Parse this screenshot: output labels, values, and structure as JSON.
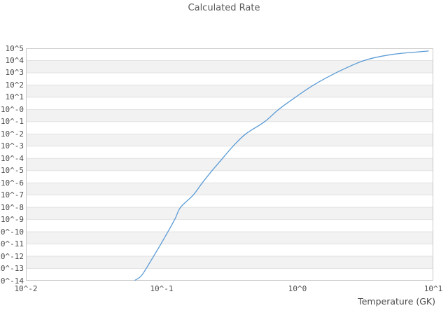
{
  "chart_data": {
    "type": "line",
    "title": "Calculated Rate",
    "xlabel": "Temperature (GK)",
    "ylabel": "",
    "x_scale": "log",
    "y_scale": "log",
    "xlim": [
      0.01,
      10
    ],
    "ylim": [
      1e-14,
      100000.0
    ],
    "grid": "horizontal-decade-bands-alternating",
    "legend": "none",
    "x_tick_labels": [
      "10^-2",
      "10^-1",
      "10^0",
      "10^1"
    ],
    "y_tick_labels": [
      "10^5",
      "10^4",
      "10^3",
      "10^2",
      "10^1",
      "10^-0",
      "10^-1",
      "10^-2",
      "10^-3",
      "10^-4",
      "10^-5",
      "10^-6",
      "10^-7",
      "10^-8",
      "10^-9",
      "10^-10",
      "10^-11",
      "10^-12",
      "10^-13",
      "10^-14"
    ],
    "series": [
      {
        "name": "calculated-rate",
        "color": "#5b9bd5",
        "points": [
          [
            0.0637,
            8.9e-15
          ],
          [
            0.0708,
            2.5e-14
          ],
          [
            0.0794,
            1.8e-13
          ],
          [
            0.0933,
            3.5e-12
          ],
          [
            0.1112,
            1e-10
          ],
          [
            0.1259,
            1.26e-09
          ],
          [
            0.1377,
            1e-08
          ],
          [
            0.1706,
            1e-07
          ],
          [
            0.1991,
            1e-06
          ],
          [
            0.235,
            1e-05
          ],
          [
            0.2805,
            0.0001
          ],
          [
            0.3357,
            0.001
          ],
          [
            0.4159,
            0.01
          ],
          [
            0.5728,
            0.1
          ],
          [
            0.7261,
            1.0
          ],
          [
            0.9661,
            10.0
          ],
          [
            1.315,
            100.0
          ],
          [
            1.925,
            1000.0
          ],
          [
            3.09,
            10000.0
          ],
          [
            5.012,
            31600.0
          ],
          [
            9.204,
            60000.0
          ]
        ]
      }
    ]
  },
  "style": {
    "background": "#ffffff",
    "band_color": "#f2f2f2",
    "grid_line_color": "#e2e2e2",
    "border_color": "#c9c9c9",
    "tick_text_color": "#4a4a4a",
    "title_color": "#595959",
    "line_color": "#5b9bd5"
  }
}
